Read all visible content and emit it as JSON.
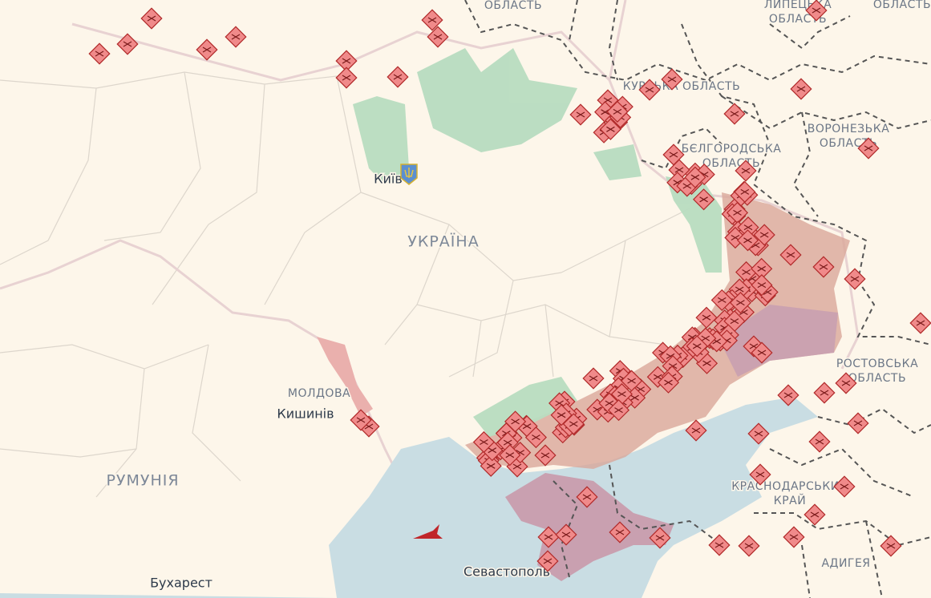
{
  "labels": [
    {
      "kind": "reg",
      "lines": [
        "ОБЛАСТЬ"
      ]
    },
    {
      "kind": "reg",
      "lines": [
        "ЛИПЕЦЬКА",
        "ОБЛАСТЬ"
      ]
    },
    {
      "kind": "reg",
      "lines": [
        "ОБЛАСТЬ"
      ]
    },
    {
      "kind": "reg",
      "lines": [
        "КУРСЬКА ОБЛАСТЬ"
      ]
    },
    {
      "kind": "reg",
      "lines": [
        "БЄЛГОРОДСЬКА",
        "ОБЛАСТЬ"
      ]
    },
    {
      "kind": "reg",
      "lines": [
        "ВОРОНЕЗЬКА",
        "ОБЛАСТЬ"
      ]
    },
    {
      "kind": "city",
      "lines": [
        "Київ"
      ]
    },
    {
      "kind": "country",
      "lines": [
        "УКРАЇНА"
      ]
    },
    {
      "kind": "reg",
      "lines": [
        "МОЛДОВА"
      ]
    },
    {
      "kind": "city",
      "lines": [
        "Кишинів"
      ]
    },
    {
      "kind": "country",
      "lines": [
        "РУМУНІЯ"
      ]
    },
    {
      "kind": "city",
      "lines": [
        "Бухарест"
      ]
    },
    {
      "kind": "city",
      "lines": [
        "Севастополь"
      ]
    },
    {
      "kind": "reg",
      "lines": [
        "РОСТОВСЬКА",
        "ОБЛАСТЬ"
      ]
    },
    {
      "kind": "reg",
      "lines": [
        "КРАСНОДАРСЬКИЙ",
        "КРАЙ"
      ]
    },
    {
      "kind": "reg",
      "lines": [
        "АДИГЕЯ"
      ]
    }
  ]
}
